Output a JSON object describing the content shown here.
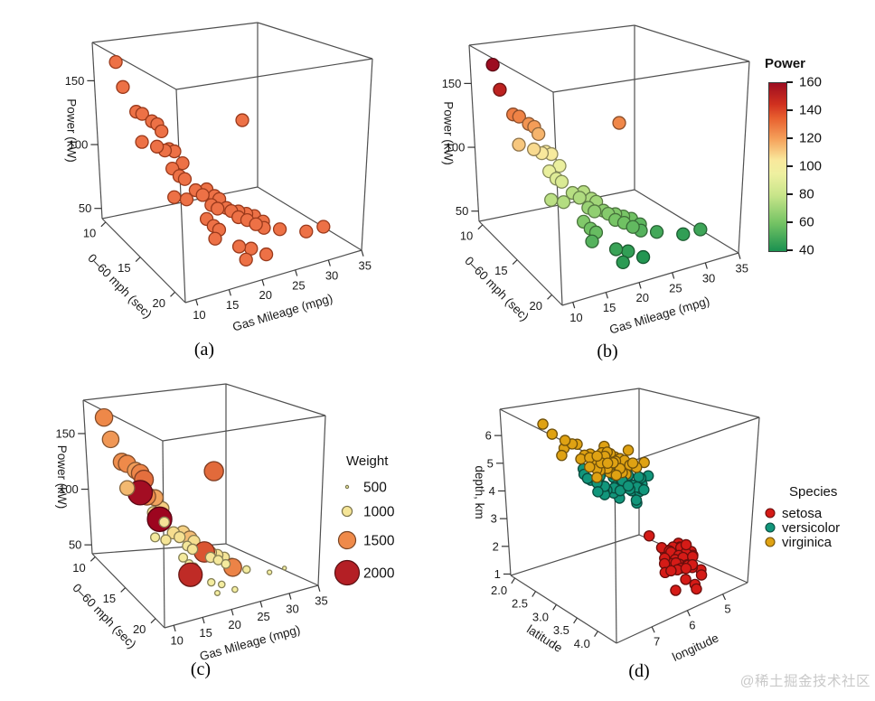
{
  "watermark": "@稀土掘金技术社区",
  "captions": {
    "a": "(a)",
    "b": "(b)",
    "c": "(c)",
    "d": "(d)"
  },
  "chart_data": {
    "panels": [
      {
        "id": "a",
        "type": "scatter3d",
        "caption": "(a)",
        "dataset": "cars",
        "axes": {
          "x": {
            "title": "Gas Mileage (mpg)",
            "ticks": [
              10,
              15,
              20,
              25,
              30,
              35
            ],
            "lim": [
              8.4,
              35
            ]
          },
          "y": {
            "title": "0–60 mph (sec)",
            "ticks": [
              10,
              15,
              20
            ],
            "lim": [
              9.5,
              21.5
            ]
          },
          "z": {
            "title": "Power (kW)",
            "ticks": [
              50,
              100,
              150
            ],
            "lim": [
              42,
              180
            ]
          }
        },
        "marker": {
          "color": "#ed7146",
          "stroke": "#99391b",
          "radius": 7
        }
      },
      {
        "id": "b",
        "type": "scatter3d",
        "caption": "(b)",
        "dataset": "cars",
        "color_by": "kw",
        "axes": {
          "x": {
            "title": "Gas Mileage (mpg)",
            "ticks": [
              10,
              15,
              20,
              25,
              30,
              35
            ],
            "lim": [
              8.4,
              35
            ]
          },
          "y": {
            "title": "0–60 mph (sec)",
            "ticks": [
              10,
              15,
              20
            ],
            "lim": [
              9.5,
              21.5
            ]
          },
          "z": {
            "title": "Power (kW)",
            "ticks": [
              50,
              100,
              150
            ],
            "lim": [
              42,
              180
            ]
          }
        },
        "marker": {
          "radius": 7
        },
        "legend": {
          "title": "Power",
          "ticks": [
            160,
            140,
            120,
            100,
            80,
            60,
            40
          ],
          "lim": [
            40,
            160
          ]
        }
      },
      {
        "id": "c",
        "type": "scatter3d",
        "caption": "(c)",
        "dataset": "cars",
        "color_by": "weight",
        "size_by": "weight",
        "axes": {
          "x": {
            "title": "Gas Mileage (mpg)",
            "ticks": [
              10,
              15,
              20,
              25,
              30,
              35
            ],
            "lim": [
              8.4,
              35
            ]
          },
          "y": {
            "title": "0–60 mph (sec)",
            "ticks": [
              10,
              15,
              20
            ],
            "lim": [
              9.5,
              21.5
            ]
          },
          "z": {
            "title": "Power (kW)",
            "ticks": [
              50,
              100,
              150
            ],
            "lim": [
              42,
              180
            ]
          }
        },
        "legend": {
          "title": "Weight",
          "entries": [
            500,
            1000,
            1500,
            2000
          ]
        }
      },
      {
        "id": "d",
        "type": "scatter3d",
        "caption": "(d)",
        "dataset": "iris",
        "axes": {
          "x": {
            "title": "longitude",
            "ticks": [
              7,
              6,
              5
            ],
            "lim": [
              8.0,
              4.3
            ]
          },
          "y": {
            "title": "latitude",
            "ticks": [
              2.0,
              2.5,
              3.0,
              3.5,
              4.0
            ],
            "tick_labels": [
              "2.0",
              "2.5",
              "3.0",
              "3.5",
              "4.0"
            ],
            "lim": [
              1.9,
              4.45
            ]
          },
          "z": {
            "title": "depth, km",
            "ticks": [
              1,
              2,
              3,
              4,
              5,
              6
            ],
            "lim": [
              0.95,
              6.95
            ]
          }
        },
        "marker": {
          "radius": 5.6
        },
        "legend": {
          "title": "Species",
          "entries": [
            {
              "label": "setosa",
              "color": "#d51b17"
            },
            {
              "label": "versicolor",
              "color": "#12967b"
            },
            {
              "label": "virginica",
              "color": "#dfa213"
            }
          ]
        }
      }
    ],
    "power_scale": {
      "lim": [
        40,
        160
      ],
      "stops": [
        [
          40,
          "#1a9150"
        ],
        [
          60,
          "#74c364"
        ],
        [
          80,
          "#c8e58a"
        ],
        [
          95,
          "#eef0a0"
        ],
        [
          105,
          "#f9e89c"
        ],
        [
          120,
          "#f5a15b"
        ],
        [
          135,
          "#e8602f"
        ],
        [
          145,
          "#d0301f"
        ],
        [
          160,
          "#9d0d21"
        ]
      ]
    },
    "weight_scale": {
      "lim": [
        500,
        2300
      ],
      "stops": [
        [
          500,
          "#f5f0a3"
        ],
        [
          900,
          "#f4eb9e"
        ],
        [
          1200,
          "#f6d98a"
        ],
        [
          1500,
          "#ef8a4a"
        ],
        [
          1800,
          "#d24028"
        ],
        [
          2100,
          "#a50f24"
        ],
        [
          2300,
          "#98001d"
        ]
      ]
    },
    "weight_radius": {
      "lim": [
        500,
        2000
      ],
      "r": [
        1.6,
        13.5
      ]
    },
    "cars": [
      [
        11.0,
        10.4,
        166,
        1510
      ],
      [
        10.6,
        11.6,
        151,
        1450
      ],
      [
        13.2,
        11.0,
        128,
        1480
      ],
      [
        13.8,
        11.3,
        127,
        1500
      ],
      [
        14.6,
        11.9,
        123,
        1430
      ],
      [
        15.2,
        12.1,
        121,
        1520
      ],
      [
        12.1,
        12.6,
        112,
        1320
      ],
      [
        14.1,
        12.9,
        108,
        2130
      ],
      [
        15.6,
        12.3,
        116,
        1610
      ],
      [
        15.1,
        13.1,
        105,
        1500
      ],
      [
        16.1,
        12.8,
        104,
        1230
      ],
      [
        16.6,
        13.1,
        103,
        1400
      ],
      [
        24.9,
        15.0,
        126,
        1630
      ],
      [
        15.6,
        13.6,
        93,
        1130
      ],
      [
        17.6,
        13.3,
        94,
        1240
      ],
      [
        16.1,
        14.1,
        89,
        2230
      ],
      [
        16.7,
        14.3,
        87,
        1010
      ],
      [
        14.6,
        14.6,
        77,
        920
      ],
      [
        16.2,
        14.9,
        75,
        1000
      ],
      [
        18.6,
        14.1,
        76,
        1140
      ],
      [
        19.1,
        14.6,
        74,
        1060
      ],
      [
        20.1,
        14.3,
        76,
        1230
      ],
      [
        20.6,
        14.9,
        73,
        1310
      ],
      [
        19.6,
        15.3,
        69,
        960
      ],
      [
        20.2,
        15.6,
        67,
        1010
      ],
      [
        21.1,
        15.1,
        71,
        1120
      ],
      [
        21.6,
        15.6,
        66,
        1020
      ],
      [
        18.1,
        15.9,
        63,
        910
      ],
      [
        18.7,
        16.3,
        59,
        860
      ],
      [
        19.2,
        16.6,
        57,
        900
      ],
      [
        18.2,
        16.9,
        53,
        1930
      ],
      [
        22.6,
        16.3,
        61,
        1010
      ],
      [
        23.1,
        15.9,
        63,
        1120
      ],
      [
        23.6,
        16.6,
        59,
        950
      ],
      [
        24.1,
        16.1,
        61,
        1060
      ],
      [
        24.6,
        16.9,
        56,
        900
      ],
      [
        25.1,
        16.3,
        59,
        1000
      ],
      [
        25.6,
        17.1,
        53,
        1530
      ],
      [
        26.1,
        16.6,
        55,
        860
      ],
      [
        21.1,
        17.6,
        47,
        810
      ],
      [
        22.6,
        17.9,
        45,
        760
      ],
      [
        24.1,
        18.6,
        42,
        700
      ],
      [
        28.1,
        17.1,
        49,
        820
      ],
      [
        31.6,
        17.6,
        45,
        620
      ],
      [
        33.6,
        18.1,
        48,
        560
      ],
      [
        20.6,
        18.9,
        44,
        660
      ],
      [
        22.1,
        15.8,
        64,
        1720
      ]
    ],
    "iris": {
      "setosa": [
        [
          5.1,
          3.5,
          1.4
        ],
        [
          4.9,
          3.0,
          1.4
        ],
        [
          4.7,
          3.2,
          1.3
        ],
        [
          4.6,
          3.1,
          1.5
        ],
        [
          5.0,
          3.6,
          1.4
        ],
        [
          5.4,
          3.9,
          1.7
        ],
        [
          4.6,
          3.4,
          1.4
        ],
        [
          5.0,
          3.4,
          1.5
        ],
        [
          4.4,
          2.9,
          1.4
        ],
        [
          4.9,
          3.1,
          1.5
        ],
        [
          5.4,
          3.7,
          1.5
        ],
        [
          4.8,
          3.4,
          1.6
        ],
        [
          4.8,
          3.0,
          1.4
        ],
        [
          4.3,
          3.0,
          1.1
        ],
        [
          5.8,
          4.0,
          1.2
        ],
        [
          5.7,
          4.4,
          1.5
        ],
        [
          5.4,
          3.9,
          1.3
        ],
        [
          5.1,
          3.5,
          1.4
        ],
        [
          5.7,
          3.8,
          1.7
        ],
        [
          5.1,
          3.8,
          1.5
        ],
        [
          5.4,
          3.4,
          1.7
        ],
        [
          5.1,
          3.7,
          1.5
        ],
        [
          4.6,
          3.6,
          1.0
        ],
        [
          5.1,
          3.3,
          1.7
        ],
        [
          4.8,
          3.4,
          1.9
        ],
        [
          5.0,
          3.0,
          1.6
        ],
        [
          5.0,
          3.4,
          1.6
        ],
        [
          5.2,
          3.5,
          1.5
        ],
        [
          5.2,
          3.4,
          1.4
        ],
        [
          4.7,
          3.2,
          1.6
        ],
        [
          4.8,
          3.1,
          1.6
        ],
        [
          5.4,
          3.4,
          1.5
        ],
        [
          5.2,
          4.1,
          1.5
        ],
        [
          5.5,
          4.2,
          1.4
        ],
        [
          4.9,
          3.1,
          1.5
        ],
        [
          5.0,
          3.2,
          1.2
        ],
        [
          5.5,
          3.5,
          1.3
        ],
        [
          4.9,
          3.6,
          1.4
        ],
        [
          4.4,
          3.0,
          1.3
        ],
        [
          5.1,
          3.4,
          1.5
        ],
        [
          5.0,
          3.5,
          1.3
        ],
        [
          4.5,
          2.3,
          1.3
        ],
        [
          4.4,
          3.2,
          1.3
        ],
        [
          5.0,
          3.5,
          1.6
        ],
        [
          5.1,
          3.8,
          1.9
        ],
        [
          4.8,
          3.0,
          1.4
        ],
        [
          5.1,
          3.8,
          1.6
        ],
        [
          4.6,
          3.2,
          1.4
        ],
        [
          5.3,
          3.7,
          1.5
        ],
        [
          5.0,
          3.3,
          1.4
        ]
      ],
      "versicolor": [
        [
          7.0,
          3.2,
          4.7
        ],
        [
          6.4,
          3.2,
          4.5
        ],
        [
          6.9,
          3.1,
          4.9
        ],
        [
          5.5,
          2.3,
          4.0
        ],
        [
          6.5,
          2.8,
          4.6
        ],
        [
          5.7,
          2.8,
          4.5
        ],
        [
          6.3,
          3.3,
          4.7
        ],
        [
          4.9,
          2.4,
          3.3
        ],
        [
          6.6,
          2.9,
          4.6
        ],
        [
          5.2,
          2.7,
          3.9
        ],
        [
          5.0,
          2.0,
          3.5
        ],
        [
          5.9,
          3.0,
          4.2
        ],
        [
          6.0,
          2.2,
          4.0
        ],
        [
          6.1,
          2.9,
          4.7
        ],
        [
          5.6,
          2.9,
          3.6
        ],
        [
          6.7,
          3.1,
          4.4
        ],
        [
          5.6,
          3.0,
          4.5
        ],
        [
          5.8,
          2.7,
          4.1
        ],
        [
          6.2,
          2.2,
          4.5
        ],
        [
          5.6,
          2.5,
          3.9
        ],
        [
          5.9,
          3.2,
          4.8
        ],
        [
          6.1,
          2.8,
          4.0
        ],
        [
          6.3,
          2.5,
          4.9
        ],
        [
          6.1,
          2.8,
          4.7
        ],
        [
          6.4,
          2.9,
          4.3
        ],
        [
          6.6,
          3.0,
          4.4
        ],
        [
          6.8,
          2.8,
          4.8
        ],
        [
          6.7,
          3.0,
          5.0
        ],
        [
          6.0,
          2.9,
          4.5
        ],
        [
          5.7,
          2.6,
          3.5
        ],
        [
          5.5,
          2.4,
          3.8
        ],
        [
          5.5,
          2.4,
          3.7
        ],
        [
          5.8,
          2.7,
          3.9
        ],
        [
          6.0,
          2.7,
          5.1
        ],
        [
          5.4,
          3.0,
          4.5
        ],
        [
          6.0,
          3.4,
          4.5
        ],
        [
          6.7,
          3.1,
          4.7
        ],
        [
          6.3,
          2.3,
          4.4
        ],
        [
          5.6,
          3.0,
          4.1
        ],
        [
          5.5,
          2.5,
          4.0
        ],
        [
          5.5,
          2.6,
          4.4
        ],
        [
          6.1,
          3.0,
          4.6
        ],
        [
          5.8,
          2.6,
          4.0
        ],
        [
          5.0,
          2.3,
          3.3
        ],
        [
          5.6,
          2.7,
          4.2
        ],
        [
          5.7,
          3.0,
          4.2
        ],
        [
          5.7,
          2.9,
          4.2
        ],
        [
          6.2,
          2.9,
          4.3
        ],
        [
          5.1,
          2.5,
          3.0
        ],
        [
          5.7,
          2.8,
          4.1
        ]
      ],
      "virginica": [
        [
          6.3,
          3.3,
          6.0
        ],
        [
          5.8,
          2.7,
          5.1
        ],
        [
          7.1,
          3.0,
          5.9
        ],
        [
          6.3,
          2.9,
          5.6
        ],
        [
          6.5,
          3.0,
          5.8
        ],
        [
          7.6,
          3.0,
          6.6
        ],
        [
          4.9,
          2.5,
          4.5
        ],
        [
          7.3,
          2.9,
          6.3
        ],
        [
          6.7,
          2.5,
          5.8
        ],
        [
          7.2,
          3.6,
          6.1
        ],
        [
          6.5,
          3.2,
          5.1
        ],
        [
          6.4,
          2.7,
          5.3
        ],
        [
          6.8,
          3.0,
          5.5
        ],
        [
          5.7,
          2.5,
          5.0
        ],
        [
          5.8,
          2.8,
          5.1
        ],
        [
          6.4,
          3.2,
          5.3
        ],
        [
          6.5,
          3.0,
          5.5
        ],
        [
          7.7,
          3.8,
          6.7
        ],
        [
          7.7,
          2.6,
          6.9
        ],
        [
          6.0,
          2.2,
          5.0
        ],
        [
          6.9,
          3.2,
          5.7
        ],
        [
          5.6,
          2.8,
          4.9
        ],
        [
          7.7,
          2.8,
          6.7
        ],
        [
          6.3,
          2.7,
          4.9
        ],
        [
          6.7,
          3.3,
          5.7
        ],
        [
          7.2,
          3.2,
          6.0
        ],
        [
          6.2,
          2.8,
          4.8
        ],
        [
          6.1,
          3.0,
          4.9
        ],
        [
          6.4,
          2.8,
          5.6
        ],
        [
          7.2,
          3.0,
          5.8
        ],
        [
          7.4,
          2.8,
          6.1
        ],
        [
          7.9,
          3.8,
          6.4
        ],
        [
          6.4,
          2.8,
          5.6
        ],
        [
          6.3,
          2.8,
          5.1
        ],
        [
          6.1,
          2.6,
          5.6
        ],
        [
          7.7,
          3.0,
          6.1
        ],
        [
          6.3,
          3.4,
          5.6
        ],
        [
          6.4,
          3.1,
          5.5
        ],
        [
          6.0,
          3.0,
          4.8
        ],
        [
          6.9,
          3.1,
          5.4
        ],
        [
          6.7,
          3.1,
          5.6
        ],
        [
          6.9,
          3.1,
          5.1
        ],
        [
          5.8,
          2.7,
          5.1
        ],
        [
          6.8,
          3.2,
          5.9
        ],
        [
          6.7,
          3.3,
          5.7
        ],
        [
          6.7,
          3.0,
          5.2
        ],
        [
          6.3,
          2.5,
          5.0
        ],
        [
          6.5,
          3.0,
          5.2
        ],
        [
          6.2,
          3.4,
          5.4
        ],
        [
          5.9,
          3.0,
          5.1
        ]
      ]
    }
  }
}
